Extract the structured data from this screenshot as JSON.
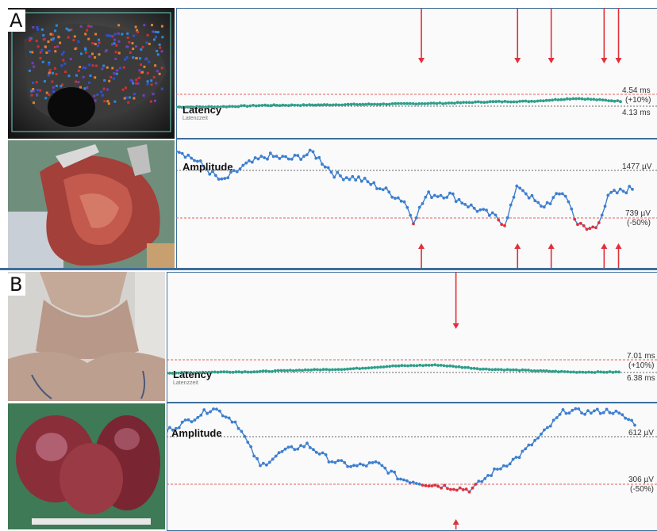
{
  "panels": [
    {
      "label": "A",
      "photo_top": "ultrasound-doppler-image",
      "photo_bottom": "intraoperative-photo",
      "latency": {
        "title": "Latency",
        "sub": "Latenzzeit",
        "upper_value": "4.54 ms",
        "upper_note": "(+10%)",
        "baseline_value": "4.13 ms"
      },
      "amplitude": {
        "title": "Amplitude",
        "baseline_value": "1477 µV",
        "lower_value": "739 µV",
        "lower_note": "(-50%)"
      },
      "event_fractions": [
        0.51,
        0.71,
        0.78,
        0.89,
        0.92
      ]
    },
    {
      "label": "B",
      "photo_top": "patient-neck-photo",
      "photo_bottom": "resected-goiter-photo",
      "latency": {
        "title": "Latency",
        "sub": "Latenzzeit",
        "upper_value": "7.01 ms",
        "upper_note": "(+10%)",
        "baseline_value": "6.38 ms"
      },
      "amplitude": {
        "title": "Amplitude",
        "baseline_value": "612 µV",
        "lower_value": "306 µV",
        "lower_note": "(-50%)"
      },
      "event_fractions": [
        0.59
      ]
    }
  ],
  "colors": {
    "latency_trace": "#2e9e8a",
    "amplitude_trace": "#3d7fd0",
    "alarm_red": "#e0303a",
    "threshold_red": "#e06060",
    "baseline_gray": "#666666",
    "frame_blue": "#3d6e9a"
  },
  "chart_data": [
    {
      "type": "line",
      "title": "",
      "series": [
        {
          "name": "Latency",
          "unit": "ms",
          "baseline": 4.13,
          "upper_threshold": 4.54,
          "x": [
            0,
            0.1,
            0.2,
            0.3,
            0.4,
            0.5,
            0.6,
            0.7,
            0.8,
            0.9,
            1.0
          ],
          "values": [
            4.1,
            4.11,
            4.16,
            4.17,
            4.19,
            4.21,
            4.23,
            4.28,
            4.3,
            4.4,
            4.3
          ]
        },
        {
          "name": "Amplitude",
          "unit": "µV",
          "baseline": 1477,
          "lower_threshold": 739,
          "x": [
            0,
            0.05,
            0.1,
            0.15,
            0.2,
            0.25,
            0.3,
            0.35,
            0.4,
            0.45,
            0.5,
            0.52,
            0.55,
            0.6,
            0.65,
            0.7,
            0.72,
            0.75,
            0.8,
            0.85,
            0.88,
            0.9,
            0.92,
            0.95,
            1.0
          ],
          "values": [
            1820,
            1600,
            1300,
            1550,
            1700,
            1650,
            1750,
            1400,
            1350,
            1200,
            1000,
            700,
            1100,
            1100,
            900,
            750,
            650,
            1250,
            900,
            1150,
            650,
            560,
            600,
            1100,
            1200
          ]
        }
      ]
    },
    {
      "type": "line",
      "title": "",
      "series": [
        {
          "name": "Latency",
          "unit": "ms",
          "baseline": 6.38,
          "upper_threshold": 7.01,
          "x": [
            0,
            0.1,
            0.2,
            0.3,
            0.4,
            0.5,
            0.6,
            0.7,
            0.8,
            0.9,
            1.0
          ],
          "values": [
            6.35,
            6.4,
            6.42,
            6.5,
            6.55,
            6.7,
            6.75,
            6.55,
            6.48,
            6.4,
            6.4
          ]
        },
        {
          "name": "Amplitude",
          "unit": "µV",
          "baseline": 612,
          "lower_threshold": 306,
          "x": [
            0,
            0.05,
            0.1,
            0.15,
            0.2,
            0.25,
            0.3,
            0.35,
            0.4,
            0.45,
            0.5,
            0.55,
            0.6,
            0.65,
            0.7,
            0.75,
            0.8,
            0.85,
            0.9,
            0.95,
            1.0
          ],
          "values": [
            650,
            720,
            800,
            700,
            420,
            520,
            560,
            460,
            420,
            440,
            340,
            310,
            290,
            270,
            390,
            480,
            620,
            780,
            770,
            780,
            700
          ]
        }
      ]
    }
  ]
}
